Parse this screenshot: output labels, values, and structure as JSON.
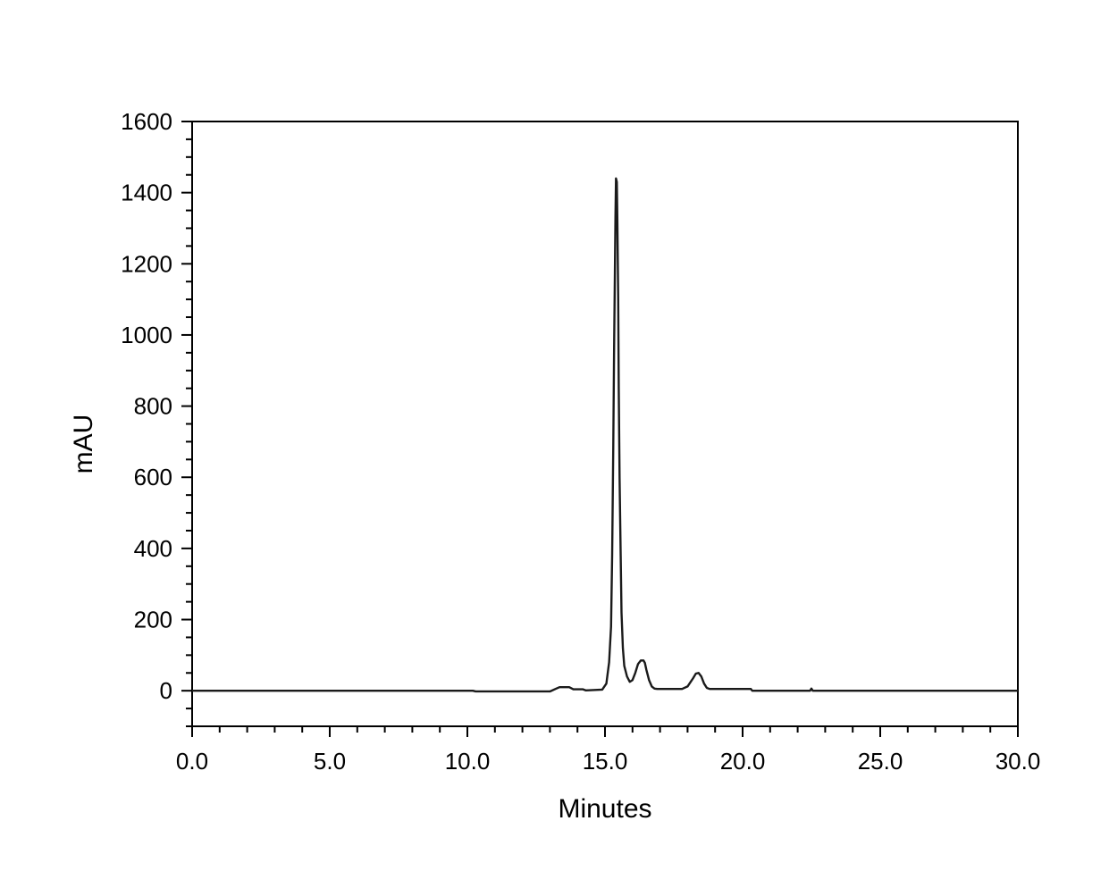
{
  "chart_data": {
    "type": "line",
    "title": "",
    "xlabel": "Minutes",
    "ylabel": "mAU",
    "xlim": [
      0,
      30
    ],
    "ylim": [
      -100,
      1600
    ],
    "x_ticks": [
      0,
      5,
      10,
      15,
      20,
      25,
      30
    ],
    "x_tick_labels": [
      "0.0",
      "5.0",
      "10.0",
      "15.0",
      "20.0",
      "25.0",
      "30.0"
    ],
    "y_ticks": [
      0,
      200,
      400,
      600,
      800,
      1000,
      1200,
      1400,
      1600
    ],
    "y_tick_labels": [
      "0",
      "200",
      "400",
      "600",
      "800",
      "1000",
      "1200",
      "1400",
      "1600"
    ],
    "grid": false,
    "line_color": "#1a1a1a",
    "series": [
      {
        "x": [
          0,
          10.2,
          10.3,
          13.0,
          13.2,
          13.35,
          13.7,
          13.85,
          14.2,
          14.3,
          14.9,
          15.05,
          15.15,
          15.22,
          15.26,
          15.3,
          15.33,
          15.36,
          15.38,
          15.4,
          15.43,
          15.45,
          15.48,
          15.5,
          15.53,
          15.57,
          15.6,
          15.65,
          15.7,
          15.8,
          15.9,
          16.0,
          16.1,
          16.2,
          16.3,
          16.4,
          16.45,
          16.5,
          16.6,
          16.7,
          16.8,
          16.9,
          17.2,
          17.8,
          18.0,
          18.2,
          18.3,
          18.4,
          18.5,
          18.6,
          18.7,
          18.8,
          19.0,
          20.3,
          20.35,
          22.45,
          22.5,
          22.55,
          30
        ],
        "y": [
          0,
          0,
          -2,
          -2,
          5,
          10,
          10,
          4,
          4,
          1,
          3,
          20,
          80,
          180,
          380,
          680,
          950,
          1180,
          1330,
          1440,
          1430,
          1320,
          1100,
          850,
          600,
          380,
          220,
          120,
          70,
          40,
          25,
          30,
          50,
          75,
          85,
          85,
          78,
          60,
          30,
          12,
          6,
          5,
          5,
          5,
          12,
          35,
          48,
          50,
          40,
          20,
          8,
          5,
          5,
          5,
          0,
          0,
          6,
          0,
          0
        ]
      }
    ]
  }
}
